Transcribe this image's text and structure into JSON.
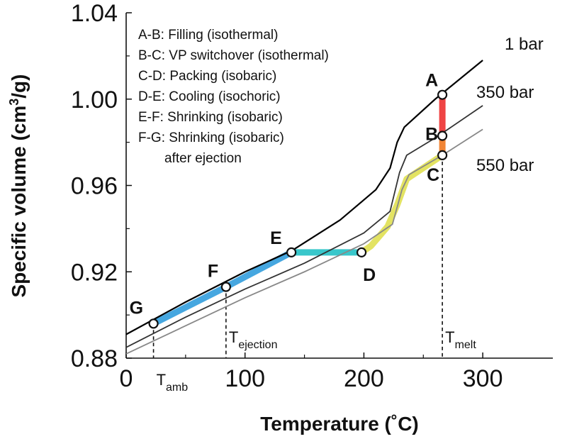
{
  "chart_data": {
    "type": "line",
    "xlabel": "Temperature (˚C)",
    "ylabel": "Specific volume (cm3/g)",
    "ylabel_sup": "3",
    "xlim": [
      0,
      350
    ],
    "ylim": [
      0.88,
      1.04
    ],
    "x_ticks": [
      0,
      100,
      200,
      300
    ],
    "x_tick_labels": [
      "0",
      "100",
      "200",
      "300"
    ],
    "y_ticks": [
      0.88,
      0.92,
      0.96,
      1.0,
      1.04
    ],
    "y_tick_labels": [
      "0.88",
      "0.92",
      "0.96",
      "1.00",
      "1.04"
    ],
    "grid": false,
    "legend": {
      "placement": "top-left",
      "entries": [
        {
          "key": "A-B",
          "text": ": Filling (isothermal)"
        },
        {
          "key": "B-C",
          "text": ": VP switchover (isothermal)"
        },
        {
          "key": "C-D",
          "text": ": Packing (isobaric)"
        },
        {
          "key": "D-E",
          "text": ": Cooling (isochoric)"
        },
        {
          "key": "E-F",
          "text": ": Shrinking (isobaric)"
        },
        {
          "key": "F-G",
          "text": ": Shrinking (isobaric)"
        },
        {
          "key": "",
          "text": "after ejection"
        }
      ]
    },
    "series": [
      {
        "name": "1 bar",
        "color": "#000000",
        "x": [
          0,
          50,
          100,
          140,
          180,
          210,
          222,
          228,
          234,
          260,
          300
        ],
        "y": [
          0.891,
          0.906,
          0.92,
          0.93,
          0.944,
          0.958,
          0.968,
          0.98,
          0.987,
          1.0,
          1.018
        ]
      },
      {
        "name": "350 bar",
        "color": "#333333",
        "x": [
          0,
          50,
          100,
          150,
          200,
          222,
          230,
          236,
          260,
          300
        ],
        "y": [
          0.885,
          0.899,
          0.912,
          0.924,
          0.938,
          0.948,
          0.966,
          0.974,
          0.982,
          0.997
        ]
      },
      {
        "name": "550 bar",
        "color": "#888888",
        "x": [
          0,
          50,
          100,
          150,
          200,
          224,
          232,
          238,
          266,
          300
        ],
        "y": [
          0.882,
          0.895,
          0.908,
          0.92,
          0.933,
          0.942,
          0.958,
          0.965,
          0.974,
          0.986
        ]
      }
    ],
    "highlights": [
      {
        "segment": "A-B",
        "color": "#ee3a3a",
        "x": [
          266,
          266
        ],
        "y": [
          1.002,
          0.983
        ]
      },
      {
        "segment": "B-C",
        "color": "#f07e2a",
        "x": [
          266,
          266
        ],
        "y": [
          0.983,
          0.974
        ]
      },
      {
        "segment": "C-D",
        "color": "#e1e25a",
        "x": [
          266,
          236,
          228,
          220,
          206,
          198
        ],
        "y": [
          0.974,
          0.963,
          0.951,
          0.941,
          0.932,
          0.929
        ]
      },
      {
        "segment": "D-E",
        "color": "#2ec4c8",
        "x": [
          198,
          139
        ],
        "y": [
          0.929,
          0.929
        ]
      },
      {
        "segment": "E-F",
        "color": "#3ca2de",
        "x": [
          139,
          84
        ],
        "y": [
          0.929,
          0.913
        ]
      },
      {
        "segment": "F-G",
        "color": "#3ca2de",
        "x": [
          84,
          23
        ],
        "y": [
          0.913,
          0.896
        ]
      }
    ],
    "points": [
      {
        "label": "A",
        "x": 266,
        "y": 1.002,
        "dx": -24,
        "dy": -12
      },
      {
        "label": "B",
        "x": 266,
        "y": 0.983,
        "dx": -24,
        "dy": 6
      },
      {
        "label": "C",
        "x": 266,
        "y": 0.974,
        "dx": -22,
        "dy": 36
      },
      {
        "label": "D",
        "x": 198,
        "y": 0.929,
        "dx": 2,
        "dy": 40
      },
      {
        "label": "E",
        "x": 139,
        "y": 0.929,
        "dx": -30,
        "dy": -12
      },
      {
        "label": "F",
        "x": 84,
        "y": 0.913,
        "dx": -26,
        "dy": -14
      },
      {
        "label": "G",
        "x": 23,
        "y": 0.896,
        "dx": -34,
        "dy": -14
      }
    ],
    "reference_lines": [
      {
        "x": 23,
        "from_y": 0.896,
        "label": "T",
        "sub": "amb"
      },
      {
        "x": 84,
        "from_y": 0.913,
        "label": "T",
        "sub": "ejection"
      },
      {
        "x": 266,
        "from_y": 0.974,
        "label": "T",
        "sub": "melt"
      }
    ],
    "curve_labels": [
      "1 bar",
      "350 bar",
      "550 bar"
    ]
  }
}
